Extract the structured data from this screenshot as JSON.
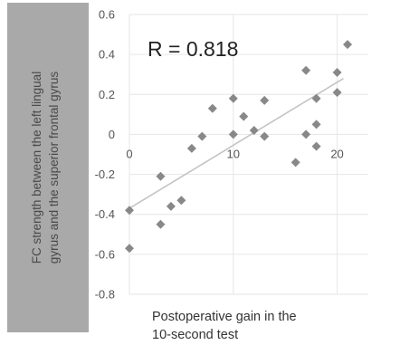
{
  "chart_data": {
    "type": "scatter",
    "annotation": "R = 0.818",
    "xlabel_lines": [
      "Postoperative gain in the",
      "10-second test"
    ],
    "ylabel_lines": [
      "FC strength between the left lingual",
      "gyrus and the superior frontal gyrus"
    ],
    "xlim": [
      0,
      23
    ],
    "ylim": [
      -0.8,
      0.6
    ],
    "xticks": [
      0,
      10,
      20
    ],
    "yticks": [
      0.6,
      0.4,
      0.2,
      0,
      -0.2,
      -0.4,
      -0.6,
      -0.8
    ],
    "ytick_labels": [
      "0.6",
      "0.4",
      "0.2",
      "0",
      "-0.2",
      "-0.4",
      "-0.6",
      "-0.8"
    ],
    "xtick_labels": [
      "0",
      "10",
      "20"
    ],
    "grid": true,
    "trendline": {
      "x": [
        0,
        20.6
      ],
      "y": [
        -0.37,
        0.28
      ]
    },
    "points": [
      {
        "x": 0,
        "y": -0.38
      },
      {
        "x": 0,
        "y": -0.57
      },
      {
        "x": 3,
        "y": -0.21
      },
      {
        "x": 3,
        "y": -0.45
      },
      {
        "x": 4,
        "y": -0.36
      },
      {
        "x": 5,
        "y": -0.33
      },
      {
        "x": 6,
        "y": -0.07
      },
      {
        "x": 7,
        "y": -0.01
      },
      {
        "x": 8,
        "y": 0.13
      },
      {
        "x": 10,
        "y": 0.18
      },
      {
        "x": 10,
        "y": 0.0
      },
      {
        "x": 11,
        "y": 0.09
      },
      {
        "x": 12,
        "y": 0.02
      },
      {
        "x": 13,
        "y": 0.17
      },
      {
        "x": 13,
        "y": -0.01
      },
      {
        "x": 16,
        "y": -0.14
      },
      {
        "x": 17,
        "y": 0.32
      },
      {
        "x": 17,
        "y": 0.0
      },
      {
        "x": 18,
        "y": 0.18
      },
      {
        "x": 18,
        "y": 0.05
      },
      {
        "x": 18,
        "y": -0.06
      },
      {
        "x": 20,
        "y": 0.31
      },
      {
        "x": 20,
        "y": 0.21
      },
      {
        "x": 21,
        "y": 0.45
      }
    ],
    "colors": {
      "points": "#888888",
      "grid": "#e6e6e6",
      "trendline": "#c4c4c4",
      "ylabel_box": "#a9a9a9"
    }
  }
}
